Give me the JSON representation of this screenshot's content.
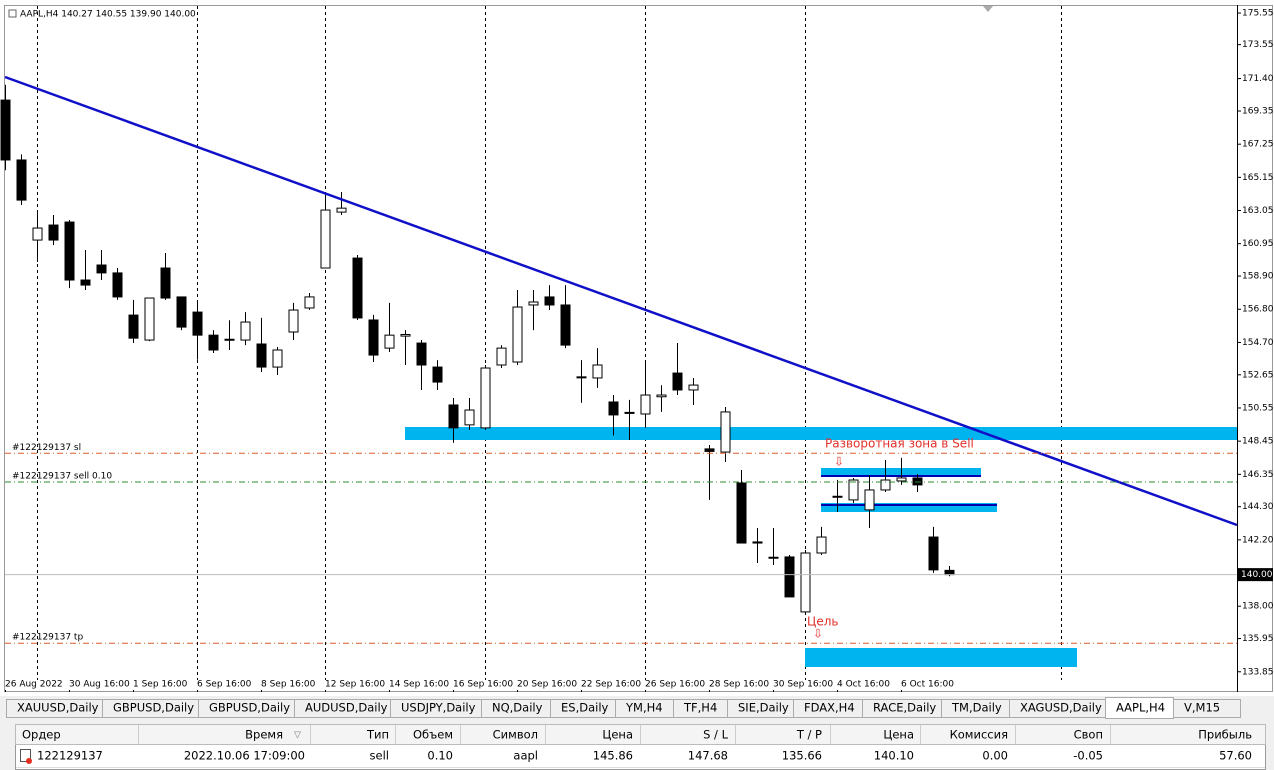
{
  "chart_data": {
    "type": "candlestick",
    "title": "AAPL,H4  140.27 140.55 139.90 140.00",
    "categories": [
      "26 Aug 2022",
      null,
      null,
      null,
      "30 Aug 16:00",
      null,
      null,
      null,
      "1 Sep 16:00",
      null,
      null,
      null,
      "6 Sep 16:00",
      null,
      null,
      null,
      "8 Sep 16:00",
      null,
      null,
      null,
      "12 Sep 16:00",
      null,
      null,
      null,
      "14 Sep 16:00",
      null,
      null,
      null,
      "16 Sep 16:00",
      null,
      null,
      null,
      "20 Sep 16:00",
      null,
      null,
      null,
      "22 Sep 16:00",
      null,
      null,
      null,
      "26 Sep 16:00",
      null,
      null,
      null,
      "28 Sep 16:00",
      null,
      null,
      null,
      "30 Sep 16:00",
      null,
      null,
      null,
      "4 Oct 16:00",
      null,
      null,
      null,
      "6 Oct 16:00",
      null,
      null,
      null
    ],
    "open": [
      170.04,
      166.25,
      161.18,
      162.13,
      162.32,
      158.65,
      159.6,
      159.1,
      156.43,
      154.85,
      159.41,
      157.58,
      156.62,
      155.16,
      154.9,
      154.85,
      154.6,
      153.14,
      155.36,
      156.88,
      159.41,
      162.95,
      160.04,
      156.12,
      154.34,
      155.1,
      154.66,
      153.14,
      150.74,
      149.48,
      149.29,
      153.27,
      153.46,
      157.07,
      157.58,
      157.07,
      152.52,
      152.45,
      150.93,
      150.27,
      150.17,
      151.26,
      152.76,
      151.69,
      147.96,
      147.76,
      145.8,
      142.07,
      141.1,
      141.12,
      137.64,
      141.37,
      144.96,
      144.73,
      144.1,
      145.36,
      145.93,
      146.12,
      142.38,
      140.27
    ],
    "high": [
      171.0,
      166.6,
      162.96,
      162.77,
      162.45,
      160.55,
      160.55,
      159.41,
      157.39,
      157.51,
      160.36,
      157.58,
      157.26,
      155.48,
      156.1,
      156.62,
      156.25,
      154.41,
      157.2,
      157.83,
      164.03,
      164.22,
      160.23,
      156.44,
      157.2,
      155.48,
      154.85,
      153.58,
      151.18,
      151.18,
      153.27,
      154.53,
      158.02,
      158.02,
      158.33,
      158.33,
      153.58,
      154.34,
      151.37,
      151.06,
      153.58,
      151.99,
      154.66,
      152.45,
      148.21,
      150.61,
      146.62,
      142.95,
      142.95,
      141.24,
      141.56,
      143.02,
      146.0,
      146.12,
      146.31,
      147.26,
      147.39,
      146.37,
      143.02,
      140.55
    ],
    "low": [
      165.6,
      163.4,
      159.79,
      160.87,
      158.14,
      158.02,
      158.65,
      157.39,
      154.66,
      154.78,
      157.39,
      155.48,
      153.6,
      154.03,
      154.22,
      154.53,
      152.83,
      152.64,
      154.85,
      156.75,
      159.41,
      162.77,
      156.12,
      153.46,
      154.09,
      153.27,
      151.69,
      151.69,
      148.34,
      149.16,
      149.16,
      153.08,
      153.27,
      155.48,
      156.75,
      154.34,
      150.87,
      151.82,
      148.81,
      148.53,
      149.29,
      150.3,
      151.37,
      150.74,
      144.73,
      147.13,
      142.0,
      140.74,
      140.61,
      138.59,
      137.64,
      141.24,
      143.97,
      144.53,
      142.95,
      145.23,
      145.68,
      145.23,
      140.11,
      139.9
    ],
    "close": [
      166.25,
      163.71,
      161.94,
      161.18,
      158.65,
      158.33,
      159.1,
      157.58,
      154.97,
      157.51,
      157.51,
      155.67,
      155.16,
      154.22,
      154.84,
      155.99,
      153.14,
      154.22,
      156.75,
      157.58,
      163.08,
      163.2,
      156.25,
      153.9,
      155.16,
      155.2,
      153.27,
      152.19,
      149.29,
      150.42,
      153.08,
      154.34,
      156.94,
      157.26,
      157.07,
      154.53,
      152.49,
      153.27,
      150.11,
      150.23,
      151.37,
      151.37,
      151.69,
      152.0,
      147.8,
      150.3,
      142.0,
      142.0,
      141.04,
      138.59,
      141.37,
      142.38,
      144.92,
      145.99,
      145.36,
      145.99,
      146.12,
      145.68,
      140.3,
      140.0
    ],
    "ylim": [
      132.57,
      176.06
    ],
    "yticks": [
      175.55,
      173.55,
      {
        "value": 171.4,
        "label": "171.40"
      },
      169.35,
      167.25,
      165.15,
      163.05,
      160.95,
      {
        "value": 158.9,
        "label": "158.90"
      },
      {
        "value": 156.8,
        "label": "156.80"
      },
      {
        "value": 154.7,
        "label": "154.70"
      },
      152.65,
      150.55,
      148.45,
      146.35,
      {
        "value": 144.3,
        "label": "144.30"
      },
      {
        "value": 142.2,
        "label": "142.20"
      },
      {
        "value": 138,
        "label": "138.00"
      },
      135.95,
      133.85
    ],
    "bid": {
      "value": 140,
      "label": "140.00"
    },
    "order_lines": [
      {
        "label": "#122129137 sl",
        "value": 147.68,
        "color": "#e05a2b"
      },
      {
        "label": "#122129137 sell 0.10",
        "value": 145.86,
        "color": "#2e8b2e"
      },
      {
        "label": "#122129137 tp",
        "value": 135.66,
        "color": "#e05a2b"
      }
    ],
    "annotations": [
      "Разворотная зона в Sell",
      "Цель"
    ]
  },
  "tabs": [
    "XAUUSD,Daily",
    "GBPUSD,Daily",
    "GBPUSD,Daily",
    "AUDUSD,Daily",
    "USDJPY,Daily",
    "NQ,Daily",
    "ES,Daily",
    "YM,H4",
    "TF,H4",
    "SIE,Daily",
    "FDAX,H4",
    "RACE,Daily",
    "TM,Daily",
    "XAGUSD,Daily",
    "AAPL,H4",
    "V,M15"
  ],
  "active_tab": 14,
  "table": {
    "header": [
      "Ордер",
      "Время",
      "Тип",
      "Объем",
      "Символ",
      "Цена",
      "S / L",
      "T / P",
      "Цена",
      "Комиссия",
      "Своп",
      "Прибыль"
    ],
    "rows": [
      [
        "122129137",
        "2022.10.06 17:09:00",
        "sell",
        "0.10",
        "aapl",
        "145.86",
        "147.68",
        "135.66",
        "140.10",
        "0.00",
        "-0.05",
        "57.60"
      ]
    ]
  }
}
